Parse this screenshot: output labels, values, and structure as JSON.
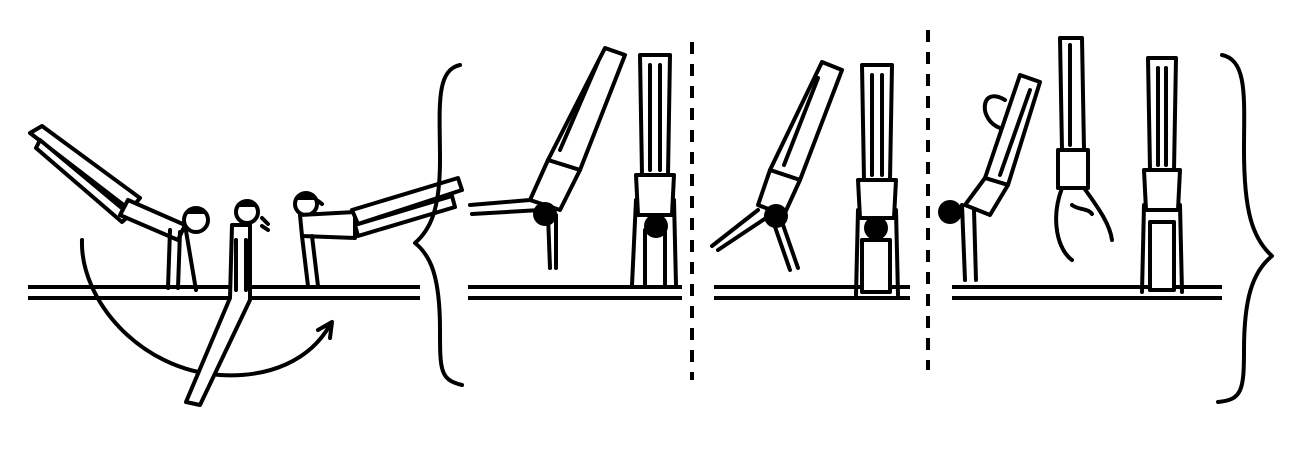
{
  "figure": {
    "description_visible_text": [],
    "colors": {
      "ink": "#000000",
      "background": "#ffffff"
    },
    "panels": [
      {
        "id": "entry-sequence",
        "figures": 3,
        "shows_swing_arc": true
      },
      {
        "id": "option-a",
        "figures": 2
      },
      {
        "id": "option-b",
        "figures": 2
      },
      {
        "id": "option-c",
        "figures": 3
      }
    ]
  }
}
